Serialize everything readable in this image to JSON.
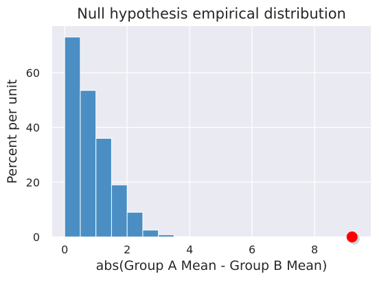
{
  "chart_data": {
    "type": "bar",
    "title": "Null hypothesis empirical distribution",
    "xlabel": "abs(Group A Mean - Group B Mean)",
    "ylabel": "Percent per unit",
    "xlim": [
      -0.4,
      9.8
    ],
    "ylim": [
      0,
      77
    ],
    "xticks": [
      "0",
      "2",
      "4",
      "6",
      "8"
    ],
    "yticks": [
      "0",
      "20",
      "40",
      "60"
    ],
    "grid": true,
    "bin_width": 0.5,
    "bins": [
      {
        "x0": 0.0,
        "x1": 0.5,
        "value": 73
      },
      {
        "x0": 0.5,
        "x1": 1.0,
        "value": 53.5
      },
      {
        "x0": 1.0,
        "x1": 1.5,
        "value": 36
      },
      {
        "x0": 1.5,
        "x1": 2.0,
        "value": 19
      },
      {
        "x0": 2.0,
        "x1": 2.5,
        "value": 9
      },
      {
        "x0": 2.5,
        "x1": 3.0,
        "value": 2.5
      },
      {
        "x0": 3.0,
        "x1": 3.5,
        "value": 0.8
      },
      {
        "x0": 3.5,
        "x1": 4.0,
        "value": 0.15
      }
    ],
    "observed_point": {
      "x": 9.2,
      "y": 0
    },
    "colors": {
      "bar": "#4a8ec4",
      "bar_edge": "#ffffff",
      "background": "#eaeaf2",
      "grid": "#ffffff",
      "point": "#ff0000"
    }
  }
}
